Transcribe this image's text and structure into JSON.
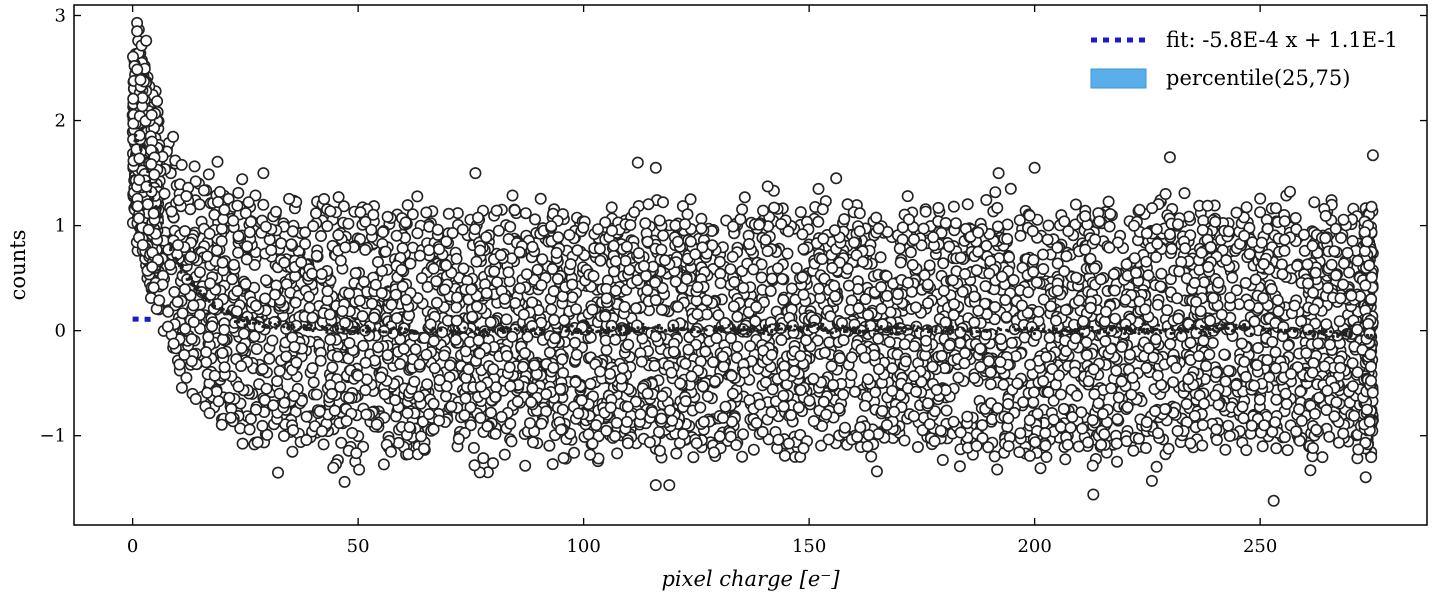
{
  "chart_data": {
    "type": "scatter",
    "title": "",
    "xlabel": "pixel charge [e⁻]",
    "ylabel": "counts",
    "xlim": [
      -13,
      287
    ],
    "ylim": [
      -1.85,
      3.1
    ],
    "xticks": [
      0,
      50,
      100,
      150,
      200,
      250
    ],
    "yticks": [
      -1,
      0,
      1,
      2,
      3
    ],
    "xtick_labels": [
      "0",
      "50",
      "100",
      "150",
      "200",
      "250"
    ],
    "ytick_labels": [
      "−1",
      "0",
      "1",
      "2",
      "3"
    ],
    "grid": false,
    "legend_position": "top-right",
    "series": [
      {
        "name": "fit: -5.8E-4 x + 1.1E-1",
        "kind": "line",
        "style": "dotted",
        "color": "#1a1acc",
        "x": [
          0,
          5
        ],
        "y": [
          0.11,
          0.1071
        ]
      },
      {
        "name": "percentile(25,75)",
        "kind": "band",
        "color": "#5aaeea",
        "x": [
          0,
          275
        ],
        "lower": [
          0,
          0
        ],
        "upper": [
          0,
          0
        ]
      }
    ],
    "scatter_profile": {
      "marker": "open-circle",
      "marker_face": "#ffffff",
      "marker_edge": "#222222",
      "x_range": [
        0,
        275
      ],
      "approx_median_curve": {
        "x": [
          0,
          2,
          5,
          10,
          15,
          20,
          25,
          30,
          40,
          60,
          100,
          150,
          200,
          250,
          275
        ],
        "y": [
          1.9,
          1.7,
          1.2,
          0.65,
          0.35,
          0.18,
          0.1,
          0.06,
          0.02,
          0.0,
          0.0,
          0.02,
          0.0,
          0.02,
          -0.05
        ]
      },
      "approx_spread": {
        "x": [
          0,
          2,
          5,
          10,
          20,
          30,
          60,
          275
        ],
        "y": [
          0.45,
          0.6,
          0.6,
          0.65,
          0.72,
          0.72,
          0.72,
          0.72
        ]
      },
      "notable_outliers": [
        {
          "x": 1,
          "y": 2.93
        },
        {
          "x": 1,
          "y": 2.85
        },
        {
          "x": 3,
          "y": 2.76
        },
        {
          "x": 29,
          "y": 1.5
        },
        {
          "x": 76,
          "y": 1.5
        },
        {
          "x": 112,
          "y": 1.6
        },
        {
          "x": 116,
          "y": 1.55
        },
        {
          "x": 156,
          "y": 1.45
        },
        {
          "x": 192,
          "y": 1.5
        },
        {
          "x": 200,
          "y": 1.55
        },
        {
          "x": 230,
          "y": 1.65
        },
        {
          "x": 275,
          "y": 1.67
        },
        {
          "x": 47,
          "y": -1.44
        },
        {
          "x": 116,
          "y": -1.47
        },
        {
          "x": 119,
          "y": -1.47
        },
        {
          "x": 213,
          "y": -1.56
        },
        {
          "x": 226,
          "y": -1.43
        },
        {
          "x": 253,
          "y": -1.62
        }
      ]
    }
  }
}
